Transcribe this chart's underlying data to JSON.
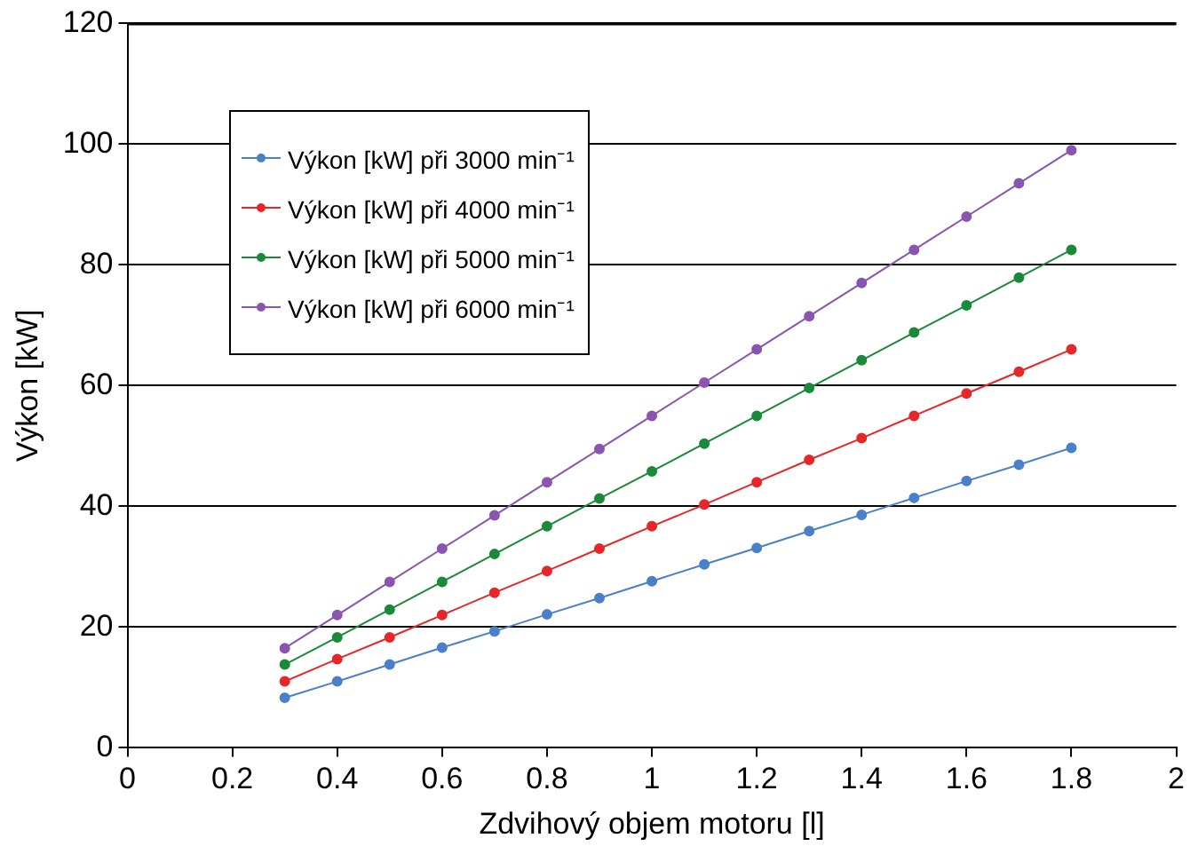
{
  "chart_data": {
    "type": "line",
    "xlabel": "Zdvihový objem motoru [l]",
    "ylabel": "Výkon [kW]",
    "x": [
      0.3,
      0.4,
      0.5,
      0.6,
      0.7,
      0.8,
      0.9,
      1.0,
      1.1,
      1.2,
      1.3,
      1.4,
      1.5,
      1.6,
      1.7,
      1.8
    ],
    "series": [
      {
        "name": "Výkon [kW] při 3000 min⁻¹",
        "color": "#4a7fc9",
        "values": [
          8.3,
          11.0,
          13.8,
          16.6,
          19.3,
          22.1,
          24.8,
          27.6,
          30.4,
          33.1,
          35.9,
          38.6,
          41.4,
          44.2,
          46.9,
          49.7
        ]
      },
      {
        "name": "Výkon [kW] při 4000 min⁻¹",
        "color": "#e8262a",
        "values": [
          11.0,
          14.7,
          18.3,
          22.0,
          25.7,
          29.3,
          33.0,
          36.7,
          40.3,
          44.0,
          47.7,
          51.3,
          55.0,
          58.7,
          62.3,
          66.0
        ]
      },
      {
        "name": "Výkon [kW] při 5000 min⁻¹",
        "color": "#1a8a3a",
        "values": [
          13.8,
          18.3,
          22.9,
          27.5,
          32.1,
          36.7,
          41.3,
          45.8,
          50.4,
          55.0,
          59.6,
          64.2,
          68.8,
          73.3,
          77.9,
          82.5
        ]
      },
      {
        "name": "Výkon [kW] při 6000 min⁻¹",
        "color": "#8a55b0",
        "values": [
          16.5,
          22.0,
          27.5,
          33.0,
          38.5,
          44.0,
          49.5,
          55.0,
          60.5,
          66.0,
          71.5,
          77.0,
          82.5,
          88.0,
          93.5,
          99.0
        ]
      }
    ],
    "xlim": [
      0,
      2
    ],
    "xticks": [
      0,
      0.2,
      0.4,
      0.6,
      0.8,
      1,
      1.2,
      1.4,
      1.6,
      1.8,
      2
    ],
    "ylim": [
      0,
      120
    ],
    "yticks": [
      0,
      20,
      40,
      60,
      80,
      100,
      120
    ],
    "grid": "y",
    "legend": "top left",
    "marker": "circle",
    "line_style": "solid"
  }
}
